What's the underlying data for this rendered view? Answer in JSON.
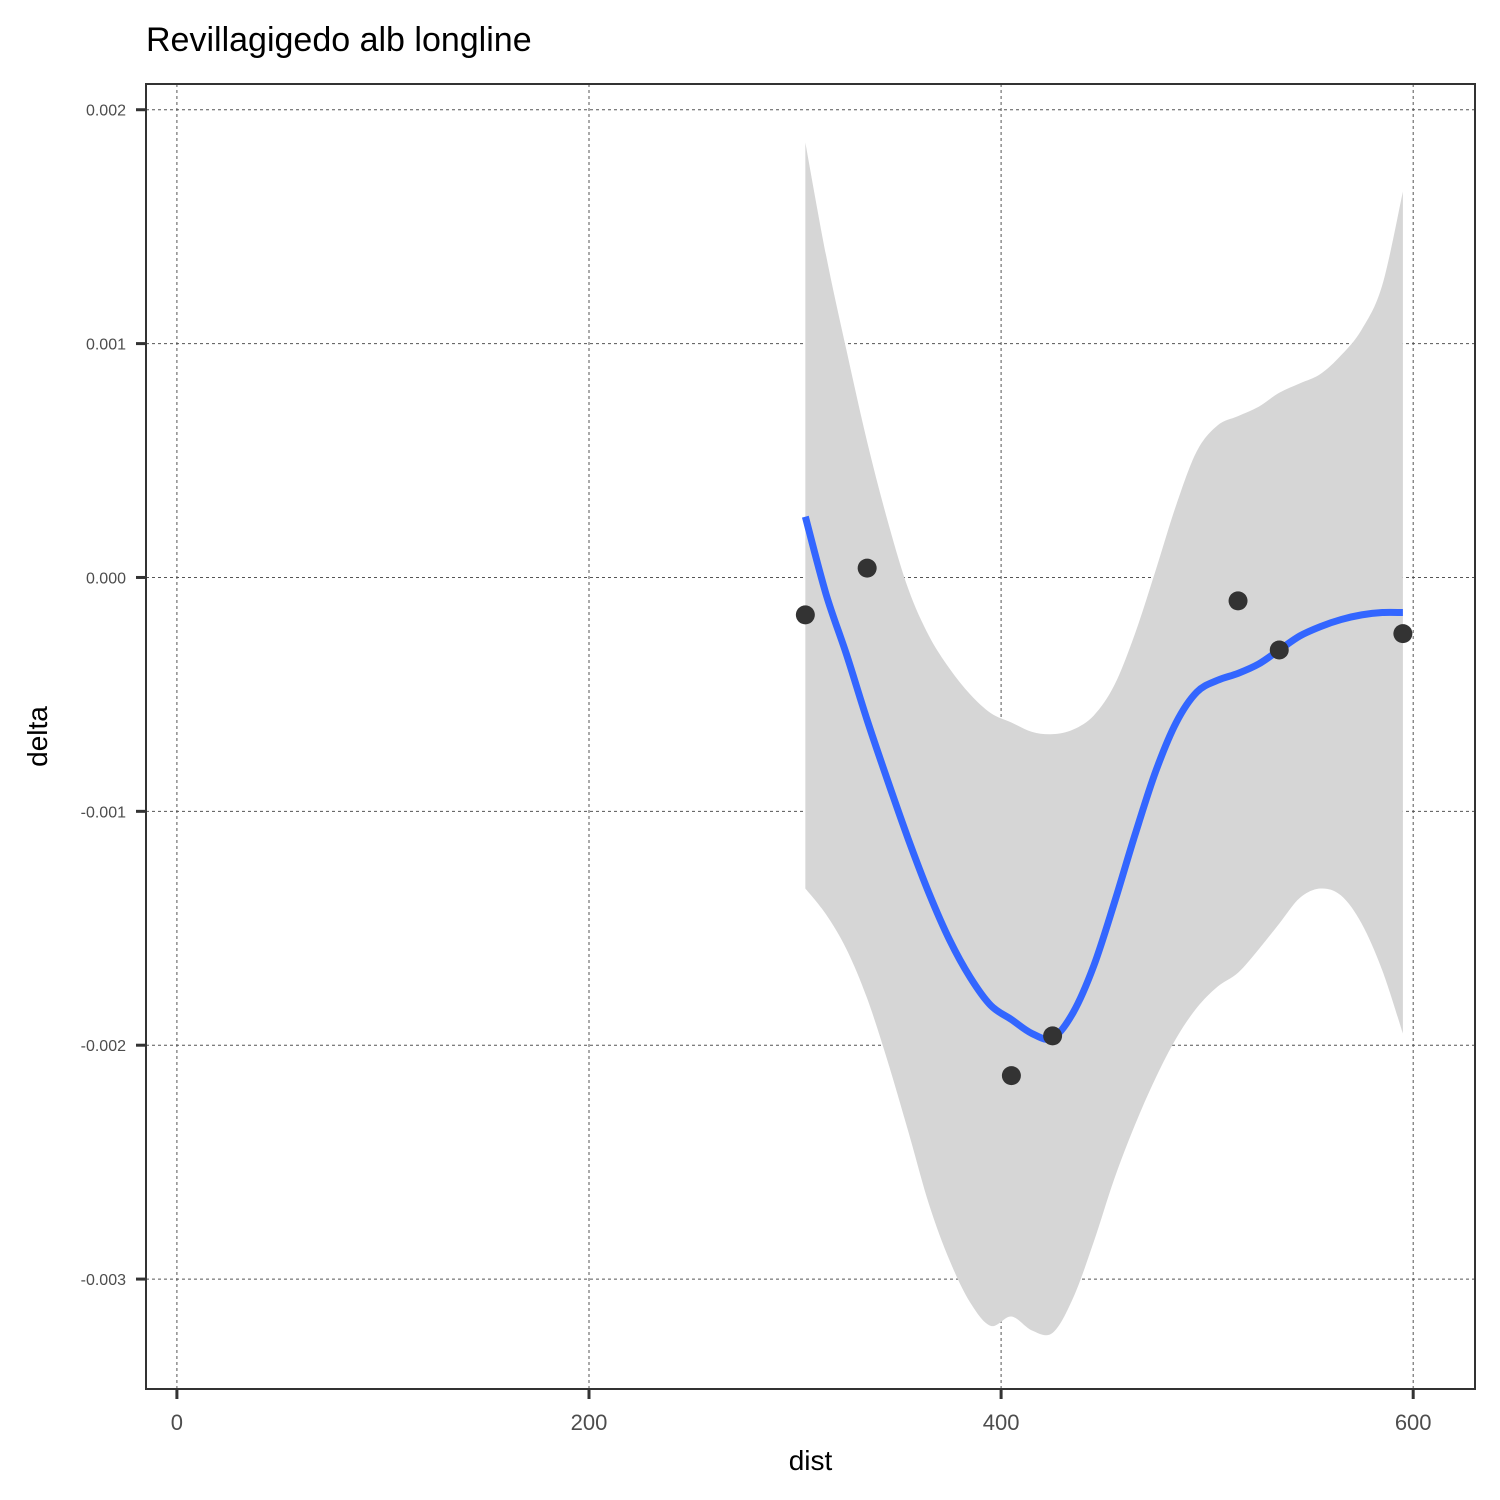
{
  "chart_data": {
    "type": "scatter",
    "title": "Revillagigedo alb longline",
    "xlabel": "dist",
    "ylabel": "delta",
    "xlim": [
      -15,
      630
    ],
    "ylim": [
      -0.00347,
      0.00211
    ],
    "x_ticks": [
      0,
      200,
      400,
      600
    ],
    "x_tick_labels": [
      "0",
      "200",
      "400",
      "600"
    ],
    "y_ticks": [
      -0.003,
      -0.002,
      -0.001,
      0.0,
      0.001,
      0.002
    ],
    "y_tick_labels": [
      "-0.003",
      "-0.002",
      "-0.001",
      "0.000",
      "0.001",
      "0.002"
    ],
    "grid": true,
    "grid_style": "dashed",
    "points": {
      "color": "#333333",
      "x": [
        305,
        335,
        405,
        425,
        515,
        535,
        595
      ],
      "y": [
        -0.00016,
        4e-05,
        -0.00213,
        -0.00196,
        -0.0001,
        -0.00031,
        -0.00024
      ]
    },
    "smooth": {
      "color": "#3366FF",
      "band_color": "#d6d6d6",
      "x": [
        305,
        315,
        325,
        335,
        345,
        355,
        365,
        375,
        385,
        395,
        405,
        415,
        425,
        435,
        445,
        455,
        465,
        475,
        485,
        495,
        505,
        515,
        525,
        535,
        545,
        555,
        565,
        575,
        585,
        595
      ],
      "y": [
        0.00026,
        -7e-05,
        -0.00033,
        -0.00061,
        -0.00087,
        -0.00112,
        -0.00135,
        -0.00155,
        -0.00171,
        -0.00183,
        -0.00189,
        -0.00195,
        -0.00197,
        -0.00186,
        -0.00166,
        -0.00139,
        -0.0011,
        -0.00083,
        -0.00062,
        -0.00049,
        -0.00044,
        -0.00041,
        -0.00037,
        -0.00031,
        -0.00025,
        -0.00021,
        -0.00018,
        -0.00016,
        -0.00015,
        -0.00015
      ],
      "ymax": [
        0.00186,
        0.00138,
        0.00097,
        0.00058,
        0.00024,
        -5e-05,
        -0.00025,
        -0.00039,
        -0.0005,
        -0.00058,
        -0.00062,
        -0.00066,
        -0.00067,
        -0.00065,
        -0.00059,
        -0.00046,
        -0.00024,
        3e-05,
        0.00031,
        0.00054,
        0.00065,
        0.00069,
        0.00073,
        0.00079,
        0.00083,
        0.00087,
        0.00095,
        0.00106,
        0.00125,
        0.00165
      ],
      "ymin": [
        -0.00133,
        -0.00144,
        -0.00159,
        -0.0018,
        -0.00207,
        -0.00237,
        -0.00268,
        -0.00292,
        -0.0031,
        -0.0032,
        -0.00316,
        -0.00322,
        -0.00323,
        -0.00308,
        -0.00284,
        -0.00257,
        -0.00234,
        -0.00214,
        -0.00197,
        -0.00184,
        -0.00175,
        -0.00169,
        -0.00159,
        -0.00148,
        -0.00137,
        -0.00133,
        -0.00136,
        -0.00148,
        -0.00168,
        -0.00195
      ]
    }
  }
}
